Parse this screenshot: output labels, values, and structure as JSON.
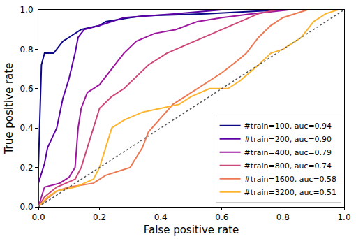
{
  "chart_data": {
    "type": "line",
    "x_label": "False positive rate",
    "y_label": "True positive rate",
    "xlim": [
      0,
      1
    ],
    "ylim": [
      0,
      1
    ],
    "xticks": [
      {
        "value": 0,
        "label": "0.0"
      },
      0.2,
      0.4,
      0.6,
      0.8,
      {
        "value": 1,
        "label": "1.0"
      }
    ],
    "yticks": [
      {
        "value": 0,
        "label": "0.0"
      },
      0.2,
      0.4,
      0.6,
      0.8,
      {
        "value": 1,
        "label": "1.0"
      }
    ],
    "grid": false,
    "legend": "lower right",
    "series": [
      {
        "name": "#train=100, auc=0.94",
        "color": "#0d0887",
        "line_style": "solid",
        "x": [
          0,
          0,
          0.01,
          0.02,
          0.05,
          0.06,
          0.08,
          0.1,
          0.12,
          0.14,
          0.2,
          0.22,
          0.3,
          0.35,
          0.55,
          0.8,
          1
        ],
        "values": [
          0,
          0.2,
          0.72,
          0.78,
          0.78,
          0.8,
          0.84,
          0.86,
          0.88,
          0.9,
          0.92,
          0.94,
          0.96,
          0.97,
          0.98,
          1,
          1
        ]
      },
      {
        "name": "#train=200, auc=0.90",
        "color": "#5c01a6",
        "line_style": "solid",
        "x": [
          0,
          0,
          0.02,
          0.03,
          0.06,
          0.08,
          0.1,
          0.12,
          0.13,
          0.15,
          0.2,
          0.28,
          0.45,
          0.6,
          1
        ],
        "values": [
          0,
          0.12,
          0.22,
          0.3,
          0.4,
          0.55,
          0.65,
          0.78,
          0.86,
          0.9,
          0.92,
          0.96,
          0.98,
          1,
          1
        ]
      },
      {
        "name": "#train=400, auc=0.79",
        "color": "#9c179e",
        "line_style": "solid",
        "x": [
          0,
          0.02,
          0.07,
          0.1,
          0.12,
          0.13,
          0.14,
          0.16,
          0.2,
          0.24,
          0.28,
          0.32,
          0.38,
          0.45,
          0.52,
          0.6,
          0.7,
          0.82,
          1
        ],
        "values": [
          0,
          0.1,
          0.12,
          0.15,
          0.2,
          0.4,
          0.5,
          0.58,
          0.62,
          0.7,
          0.78,
          0.84,
          0.88,
          0.9,
          0.94,
          0.96,
          0.98,
          1,
          1
        ]
      },
      {
        "name": "#train=800, auc=0.74",
        "color": "#cc4778",
        "line_style": "solid",
        "x": [
          0,
          0.02,
          0.06,
          0.12,
          0.14,
          0.16,
          0.18,
          0.2,
          0.24,
          0.28,
          0.32,
          0.36,
          0.42,
          0.48,
          0.54,
          0.6,
          0.66,
          0.72,
          0.78,
          1
        ],
        "values": [
          0,
          0.05,
          0.1,
          0.14,
          0.2,
          0.3,
          0.4,
          0.5,
          0.56,
          0.6,
          0.66,
          0.72,
          0.78,
          0.82,
          0.86,
          0.9,
          0.94,
          0.98,
          1,
          1
        ]
      },
      {
        "name": "#train=1600, auc=0.58",
        "color": "#ed7953",
        "line_style": "solid",
        "x": [
          0,
          0.02,
          0.06,
          0.1,
          0.18,
          0.22,
          0.3,
          0.34,
          0.36,
          0.4,
          0.44,
          0.48,
          0.52,
          0.56,
          0.6,
          0.65,
          0.68,
          0.72,
          0.76,
          0.8,
          0.84,
          0.88,
          1
        ],
        "values": [
          0,
          0.03,
          0.08,
          0.1,
          0.12,
          0.16,
          0.2,
          0.3,
          0.38,
          0.45,
          0.52,
          0.56,
          0.6,
          0.64,
          0.68,
          0.74,
          0.78,
          0.86,
          0.92,
          0.96,
          0.98,
          1,
          1
        ]
      },
      {
        "name": "#train=3200, auc=0.51",
        "color": "#fdb42f",
        "line_style": "solid",
        "x": [
          0,
          0.03,
          0.06,
          0.12,
          0.18,
          0.2,
          0.22,
          0.24,
          0.28,
          0.34,
          0.4,
          0.46,
          0.5,
          0.56,
          0.62,
          0.66,
          0.72,
          0.76,
          0.8,
          0.86,
          0.9,
          0.94,
          0.98,
          1
        ],
        "values": [
          0,
          0.05,
          0.08,
          0.1,
          0.14,
          0.2,
          0.3,
          0.4,
          0.44,
          0.48,
          0.5,
          0.52,
          0.56,
          0.6,
          0.6,
          0.64,
          0.72,
          0.78,
          0.8,
          0.86,
          0.94,
          0.98,
          1,
          1
        ]
      },
      {
        "color": "#555555",
        "line_style": "dotted",
        "x": [
          0,
          1
        ],
        "values": [
          0,
          1
        ]
      }
    ]
  }
}
